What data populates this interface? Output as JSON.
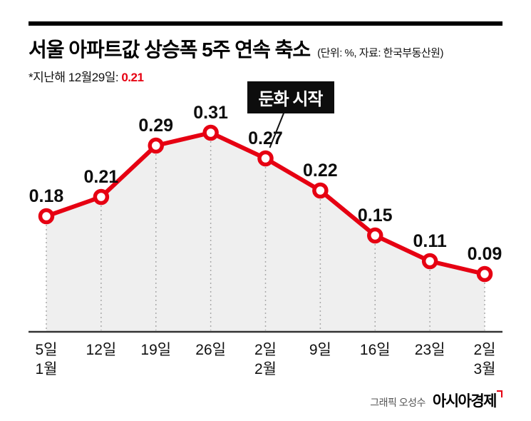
{
  "header": {
    "title": "서울 아파트값 상승폭 5주 연속 축소",
    "units_note": "(단위: %, 자료: 한국부동산원)",
    "footnote_prefix": "*지난해 12월29일: ",
    "footnote_value": "0.21"
  },
  "credit": {
    "graphic_by": "그래픽 오성수",
    "brand": "아시아경제"
  },
  "colors": {
    "line": "#e60012",
    "marker_fill": "#ffffff",
    "area": "#efefef",
    "baseline": "#333333",
    "dotted_guide": "#aaaaaa",
    "label": "#0d0d0d",
    "annotation_bg": "#0d0d0d",
    "annotation_text": "#ffffff"
  },
  "chart_data": {
    "type": "line",
    "title": "서울 아파트값 상승폭 5주 연속 축소",
    "unit": "%",
    "source": "한국부동산원",
    "x": [
      "5일",
      "12일",
      "19일",
      "26일",
      "2일",
      "9일",
      "16일",
      "23일",
      "2일"
    ],
    "month_labels": [
      {
        "index": 0,
        "label": "1월"
      },
      {
        "index": 4,
        "label": "2월"
      },
      {
        "index": 8,
        "label": "3월"
      }
    ],
    "values": [
      0.18,
      0.21,
      0.29,
      0.31,
      0.27,
      0.22,
      0.15,
      0.11,
      0.09
    ],
    "ylim": [
      0,
      0.35
    ],
    "grid": false,
    "legend": "none",
    "annotation": {
      "text": "둔화 시작",
      "point_index": 4
    }
  }
}
